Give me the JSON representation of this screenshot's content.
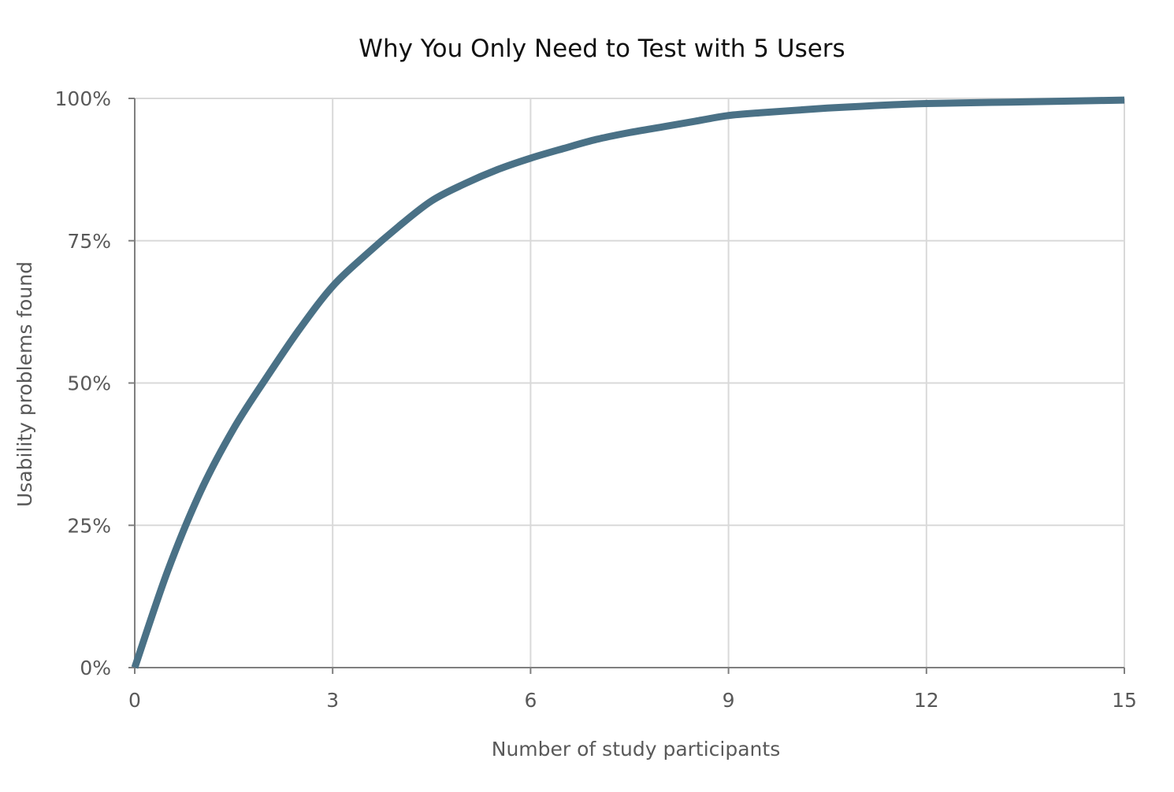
{
  "chart_data": {
    "type": "line",
    "title": "Why You Only Need to Test with 5 Users",
    "xlabel": "Number of study participants",
    "ylabel": "Usability problems found",
    "xlim": [
      0,
      15
    ],
    "ylim": [
      0,
      100
    ],
    "x_ticks": [
      0,
      3,
      6,
      9,
      12,
      15
    ],
    "x_tick_labels": [
      "0",
      "3",
      "6",
      "9",
      "12",
      "15"
    ],
    "y_ticks": [
      0,
      25,
      50,
      75,
      100
    ],
    "y_tick_labels": [
      "0%",
      "25%",
      "50%",
      "75%",
      "100%"
    ],
    "grid": true,
    "legend": "none",
    "series": [
      {
        "color": "#4a7186",
        "x": [
          0,
          0.5,
          1,
          1.5,
          2,
          2.5,
          3,
          3.5,
          4,
          4.5,
          5,
          5.5,
          6,
          6.5,
          7,
          7.5,
          8,
          8.5,
          9,
          9.5,
          10,
          10.5,
          11,
          11.5,
          12,
          12.5,
          13,
          13.5,
          14,
          14.5,
          15
        ],
        "values": [
          0,
          17,
          31,
          42,
          51,
          59.5,
          67,
          72.5,
          77.5,
          82,
          85,
          87.5,
          89.5,
          91.2,
          92.8,
          94,
          95,
          96,
          97,
          97.5,
          97.9,
          98.3,
          98.6,
          98.9,
          99.1,
          99.2,
          99.3,
          99.4,
          99.5,
          99.6,
          99.7
        ]
      }
    ]
  }
}
